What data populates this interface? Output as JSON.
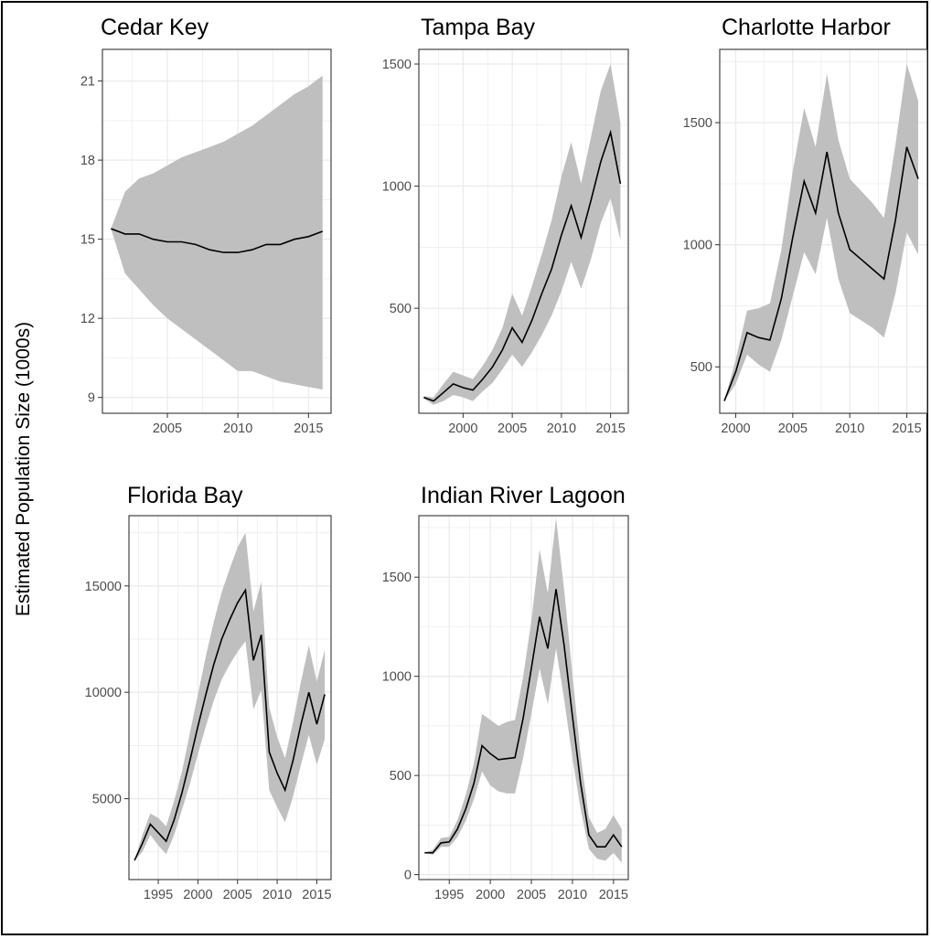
{
  "ylabel": "Estimated Population Size (1000s)",
  "chart_data": [
    {
      "type": "line",
      "title": "Cedar Key",
      "xlim": [
        2000.4,
        2016.6
      ],
      "ylim": [
        8.4,
        22.2
      ],
      "xticks": [
        2005,
        2010,
        2015
      ],
      "yticks": [
        9,
        12,
        15,
        18,
        21
      ],
      "grid": true,
      "series": [
        {
          "x": [
            2001,
            2002,
            2003,
            2004,
            2005,
            2006,
            2007,
            2008,
            2009,
            2010,
            2011,
            2012,
            2013,
            2014,
            2015,
            2016
          ],
          "values": [
            15.4,
            15.2,
            15.2,
            15.0,
            14.9,
            14.9,
            14.8,
            14.6,
            14.5,
            14.5,
            14.6,
            14.8,
            14.8,
            15.0,
            15.1,
            15.3
          ],
          "lower": [
            15.4,
            13.7,
            13.1,
            12.5,
            12.0,
            11.6,
            11.2,
            10.8,
            10.4,
            10.0,
            10.0,
            9.8,
            9.6,
            9.5,
            9.4,
            9.3
          ],
          "upper": [
            15.4,
            16.8,
            17.3,
            17.5,
            17.8,
            18.1,
            18.3,
            18.5,
            18.7,
            19.0,
            19.3,
            19.7,
            20.1,
            20.5,
            20.8,
            21.2
          ]
        }
      ]
    },
    {
      "type": "line",
      "title": "Tampa Bay",
      "xlim": [
        1995.5,
        2016.8
      ],
      "ylim": [
        70,
        1560
      ],
      "xticks": [
        1995,
        2000,
        2005,
        2010,
        2015
      ],
      "yticks": [
        500,
        1000,
        1500
      ],
      "grid": true,
      "series": [
        {
          "x": [
            1996,
            1997,
            1998,
            1999,
            2000,
            2001,
            2002,
            2003,
            2004,
            2005,
            2006,
            2007,
            2008,
            2009,
            2010,
            2011,
            2012,
            2013,
            2014,
            2015,
            2016
          ],
          "values": [
            135,
            120,
            155,
            190,
            175,
            165,
            210,
            260,
            330,
            420,
            360,
            450,
            560,
            660,
            800,
            920,
            790,
            940,
            1100,
            1220,
            1010
          ],
          "lower": [
            130,
            105,
            120,
            145,
            135,
            120,
            160,
            195,
            250,
            310,
            260,
            320,
            390,
            470,
            570,
            690,
            580,
            700,
            850,
            950,
            780
          ],
          "upper": [
            140,
            135,
            190,
            240,
            225,
            210,
            265,
            330,
            420,
            560,
            470,
            590,
            720,
            860,
            1040,
            1180,
            1010,
            1200,
            1390,
            1500,
            1260
          ]
        }
      ]
    },
    {
      "type": "line",
      "title": "Charlotte Harbor",
      "xlim": [
        1998.6,
        2016.8
      ],
      "ylim": [
        310,
        1800
      ],
      "xticks": [
        2000,
        2005,
        2010,
        2015
      ],
      "yticks": [
        500,
        1000,
        1500
      ],
      "grid": true,
      "series": [
        {
          "x": [
            1999,
            2000,
            2001,
            2002,
            2003,
            2004,
            2005,
            2006,
            2007,
            2008,
            2009,
            2010,
            2011,
            2012,
            2013,
            2014,
            2015,
            2016
          ],
          "values": [
            360,
            480,
            640,
            620,
            610,
            780,
            1030,
            1260,
            1130,
            1380,
            1130,
            980,
            940,
            900,
            860,
            1100,
            1400,
            1270
          ],
          "lower": [
            360,
            430,
            550,
            510,
            480,
            610,
            790,
            970,
            880,
            1110,
            860,
            720,
            690,
            660,
            620,
            800,
            1050,
            960
          ],
          "upper": [
            360,
            530,
            730,
            740,
            760,
            980,
            1300,
            1560,
            1400,
            1700,
            1430,
            1270,
            1220,
            1170,
            1110,
            1410,
            1740,
            1590
          ]
        }
      ]
    },
    {
      "type": "line",
      "title": "Florida Bay",
      "xlim": [
        1991.3,
        2016.8
      ],
      "ylim": [
        1200,
        18300
      ],
      "xticks": [
        1995,
        2000,
        2005,
        2010,
        2015
      ],
      "yticks": [
        5000,
        10000,
        15000
      ],
      "grid": true,
      "series": [
        {
          "x": [
            1992,
            1993,
            1994,
            1995,
            1996,
            1997,
            1998,
            1999,
            2000,
            2001,
            2002,
            2003,
            2004,
            2005,
            2006,
            2007,
            2008,
            2009,
            2010,
            2011,
            2012,
            2013,
            2014,
            2015,
            2016
          ],
          "values": [
            2100,
            2900,
            3800,
            3400,
            3000,
            4000,
            5300,
            6800,
            8400,
            9900,
            11300,
            12500,
            13400,
            14200,
            14800,
            11500,
            12700,
            7200,
            6200,
            5400,
            6800,
            8500,
            10000,
            8500,
            9900
          ],
          "lower": [
            2100,
            2500,
            3300,
            2800,
            2400,
            3300,
            4500,
            5700,
            7100,
            8400,
            9600,
            10600,
            11300,
            11900,
            12400,
            9200,
            10100,
            5400,
            4600,
            3900,
            5100,
            6600,
            8000,
            6600,
            7800
          ],
          "upper": [
            2100,
            3300,
            4300,
            4100,
            3700,
            4900,
            6300,
            8100,
            9900,
            11700,
            13300,
            14700,
            15800,
            16800,
            17500,
            13800,
            15200,
            9300,
            7900,
            6900,
            8600,
            10500,
            12200,
            10500,
            12000
          ]
        }
      ]
    },
    {
      "type": "line",
      "title": "Indian River Lagoon",
      "xlim": [
        1991.3,
        2016.8
      ],
      "ylim": [
        -25,
        1810
      ],
      "xticks": [
        1995,
        2000,
        2005,
        2010,
        2015
      ],
      "yticks": [
        0,
        500,
        1000,
        1500
      ],
      "grid": true,
      "series": [
        {
          "x": [
            1992,
            1993,
            1994,
            1995,
            1996,
            1997,
            1998,
            1999,
            2000,
            2001,
            2002,
            2003,
            2004,
            2005,
            2006,
            2007,
            2008,
            2009,
            2010,
            2011,
            2012,
            2013,
            2014,
            2015,
            2016
          ],
          "values": [
            110,
            110,
            160,
            165,
            230,
            330,
            460,
            650,
            610,
            580,
            585,
            590,
            790,
            1040,
            1300,
            1140,
            1440,
            1150,
            800,
            460,
            200,
            140,
            140,
            200,
            140
          ],
          "lower": [
            110,
            100,
            140,
            140,
            190,
            270,
            380,
            520,
            450,
            420,
            410,
            410,
            590,
            810,
            1040,
            860,
            1140,
            880,
            590,
            330,
            130,
            80,
            70,
            110,
            60
          ],
          "upper": [
            110,
            125,
            185,
            190,
            275,
            400,
            560,
            810,
            780,
            750,
            770,
            780,
            1000,
            1280,
            1640,
            1420,
            1800,
            1430,
            1010,
            600,
            290,
            210,
            230,
            300,
            230
          ]
        }
      ]
    }
  ]
}
